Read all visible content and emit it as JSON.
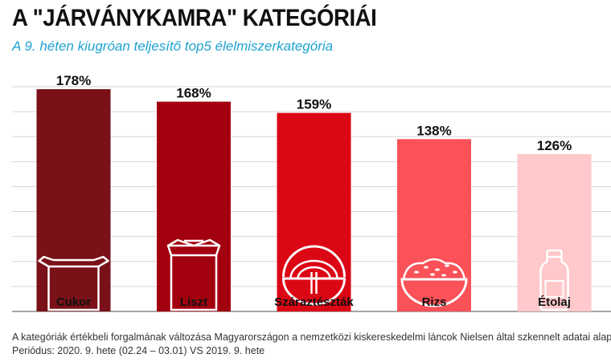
{
  "header": {
    "title": "A \"JÁRVÁNYKAMRA\" KATEGÓRIÁI",
    "subtitle": "A 9. héten kiugróan teljesítő top5 élelmiszerkategória"
  },
  "footer": {
    "note": "A kategóriák értékbeli forgalmának változása Magyarországon a nemzetközi kiskereskedelmi láncok Nielsen által szkennelt adatai alapján",
    "period": "Periódus: 2020. 9. hete (02.24 – 03.01) VS 2019. 9. hete"
  },
  "chart_data": {
    "type": "bar",
    "categories": [
      "Cukor",
      "Liszt",
      "Száraztészták",
      "Rizs",
      "Étolaj"
    ],
    "values": [
      178,
      168,
      159,
      138,
      126
    ],
    "value_labels": [
      "178%",
      "168%",
      "159%",
      "138%",
      "126%"
    ],
    "unit": "%",
    "ylim": [
      0,
      180
    ],
    "grid": true,
    "colors": [
      "#7a1018",
      "#a3000f",
      "#dc0714",
      "#fb5158",
      "#ffc8ca"
    ],
    "icons": [
      "open-box-icon",
      "flour-sack-icon",
      "pasta-bowl-icon",
      "rice-bowl-icon",
      "oil-bottle-icon"
    ],
    "icon_color": "#ffffff",
    "grid_color": "#d6d6d6",
    "axis_color": "#888888"
  }
}
